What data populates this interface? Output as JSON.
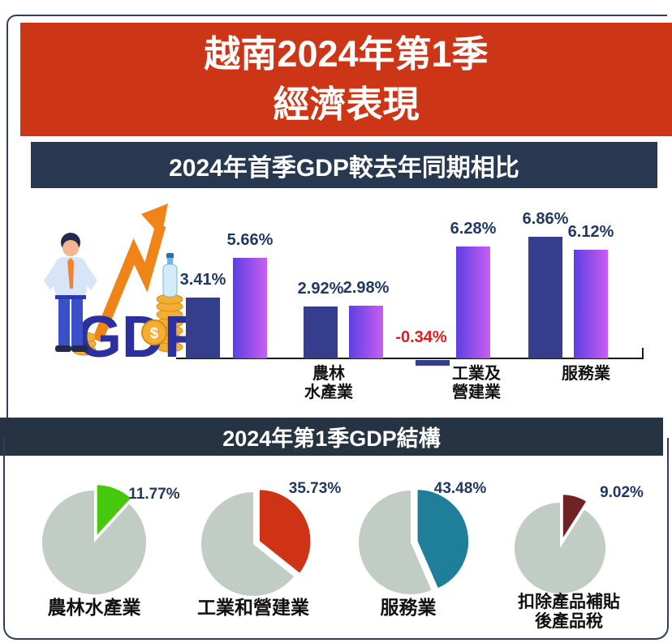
{
  "header": {
    "title_line1": "越南2024年第1季",
    "title_line2": "經濟表現"
  },
  "growth_section": {
    "banner_title": "2024年首季GDP較去年同期相比"
  },
  "structure_section": {
    "banner_title": "2024年第1季GDP結構"
  },
  "illustration": {
    "gdp_text": "GDP",
    "coin_symbol": "$"
  },
  "colors": {
    "header_bg": "#cd3517",
    "banner_growth_bg": "#273850",
    "banner_structure_bg": "#253343",
    "bar_solid": "#353e8d",
    "bar_gradient": [
      "#5b40e2",
      "#c95df2"
    ],
    "value_label": "#203864",
    "negative_label": "#e51a1a",
    "pie_rest": "#c0ccc4"
  },
  "chart_data": [
    {
      "type": "bar",
      "title": "2024年首季GDP較去年同期相比",
      "categories": [
        [],
        [
          "農林",
          "水產業"
        ],
        [
          "工業及",
          "營建業"
        ],
        [
          "服務業"
        ]
      ],
      "series": [
        {
          "name": "",
          "style": "solid",
          "values": [
            3.41,
            2.92,
            -0.34,
            6.86
          ],
          "labels": [
            "3.41%",
            "2.92%",
            "-0.34%",
            "6.86%"
          ]
        },
        {
          "name": "",
          "style": "gradient",
          "values": [
            5.66,
            2.98,
            6.28,
            6.12
          ],
          "labels": [
            "5.66%",
            "2.98%",
            "6.28%",
            "6.12%"
          ]
        }
      ],
      "ylim": [
        -1,
        8
      ],
      "grid": false,
      "legend": false
    },
    {
      "type": "pie",
      "title": "2024年第1季GDP結構",
      "slices": [
        {
          "name": [
            "農林水產業"
          ],
          "value": 11.77,
          "value_label": "11.77%",
          "color": "#46c90d"
        },
        {
          "name": [
            "工業和營建業"
          ],
          "value": 35.73,
          "value_label": "35.73%",
          "color": "#cf3316"
        },
        {
          "name": [
            "服務業"
          ],
          "value": 43.48,
          "value_label": "43.48%",
          "color": "#1f7e99"
        },
        {
          "name": [
            "扣除產品補貼",
            "後產品稅"
          ],
          "value": 9.02,
          "value_label": "9.02%",
          "color": "#6f2423"
        }
      ],
      "rest_color": "#c0ccc4",
      "legend": false
    }
  ]
}
